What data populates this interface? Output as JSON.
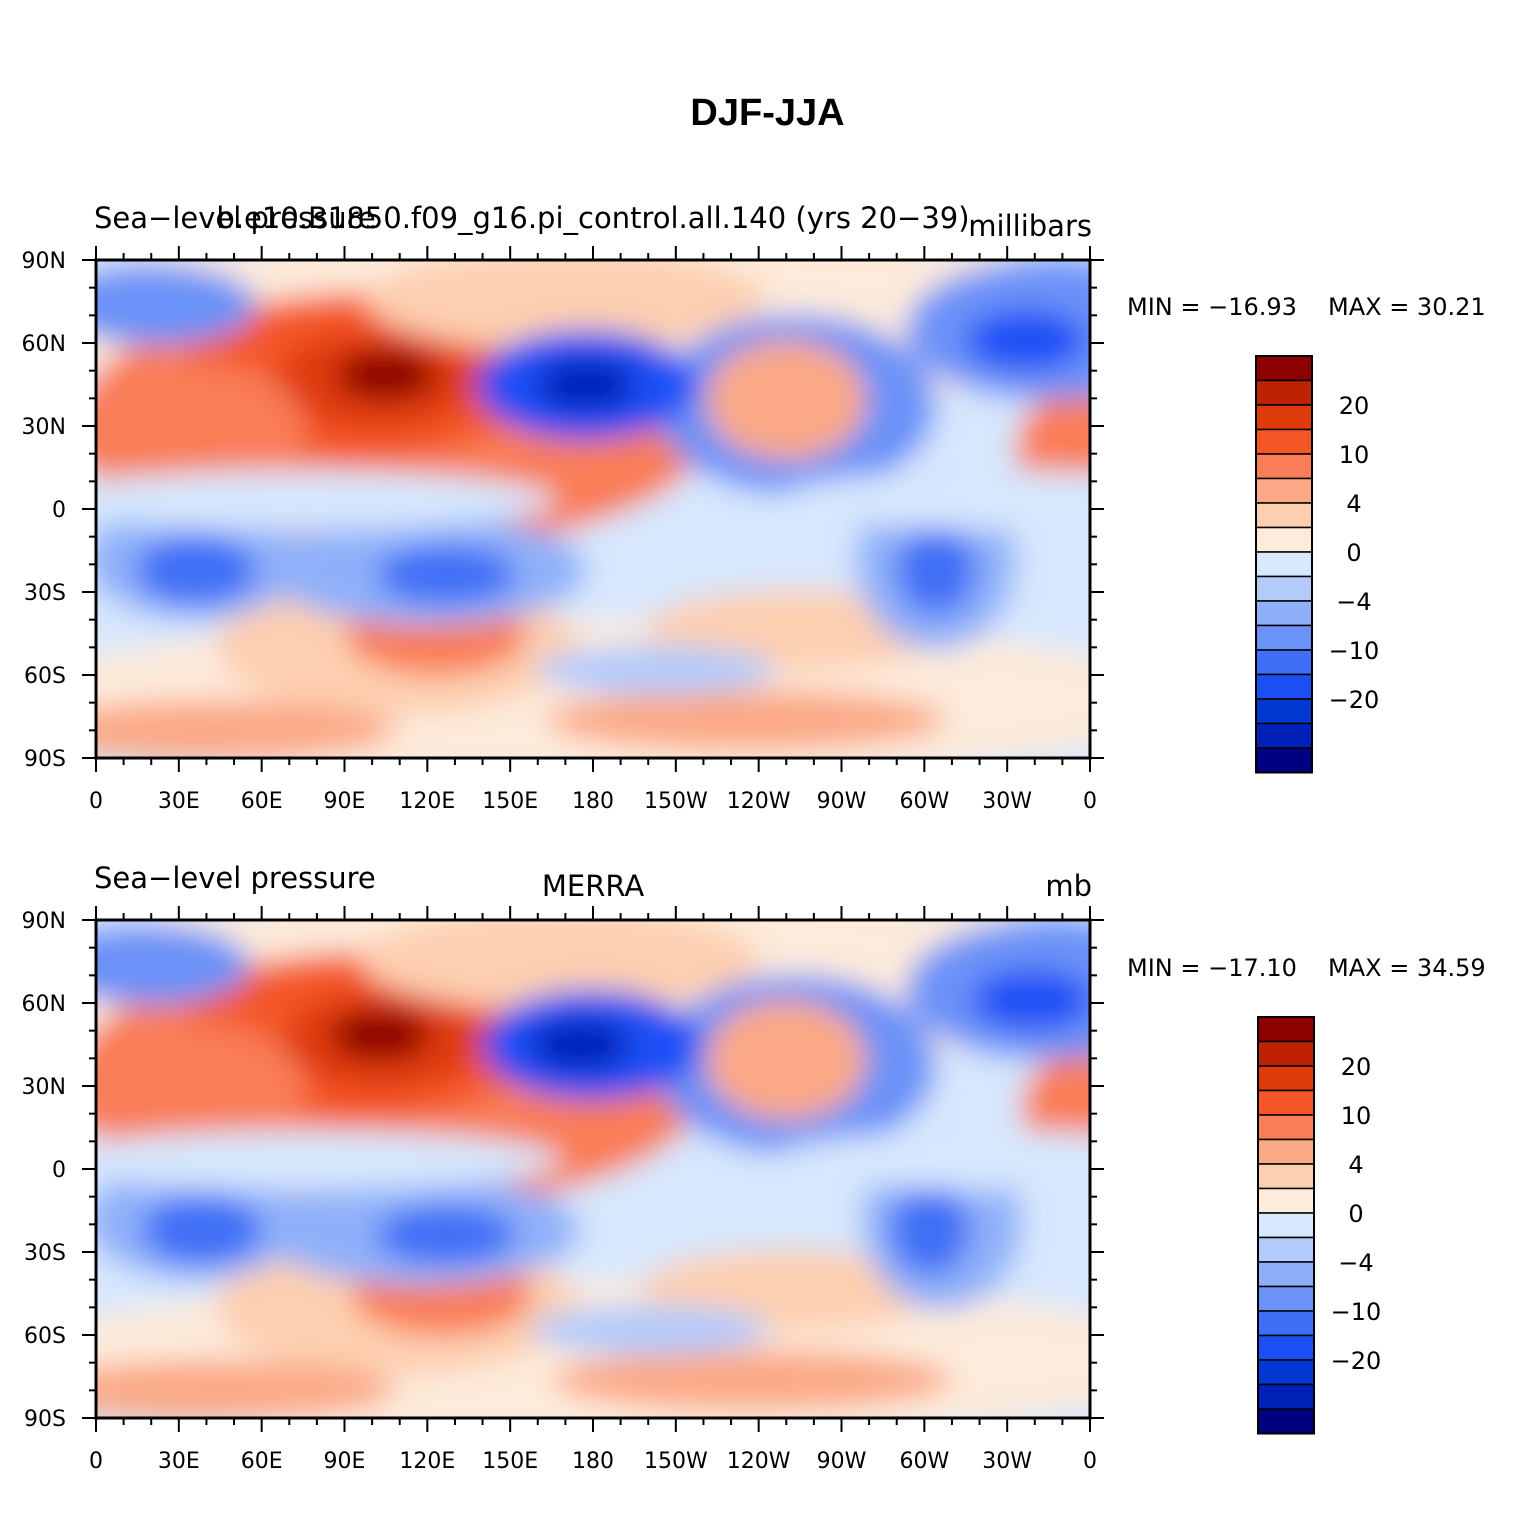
{
  "page": {
    "title": "DJF-JJA"
  },
  "colorbar": {
    "colors": [
      "#000080",
      "#0021b7",
      "#0039d1",
      "#1a4ff5",
      "#3f6ff6",
      "#6a92f8",
      "#8fb0f9",
      "#b3cbfb",
      "#d7e7fd",
      "#fdebdb",
      "#fdcfb0",
      "#fba986",
      "#f97d56",
      "#f45626",
      "#df3a09",
      "#bd2302",
      "#8c0000"
    ],
    "tick_labels": [
      "20",
      "10",
      "4",
      "0",
      "−4",
      "−10",
      "−20"
    ]
  },
  "chart_data": [
    {
      "type": "heatmap",
      "title_left": "Sea−level pressure",
      "title_center": "b.e10.B1850.f09_g16.pi_control.all.140 (yrs 20−39)",
      "units": "millibars",
      "min_label": "MIN = −16.93",
      "max_label": "MAX =   30.21",
      "min": -16.93,
      "max": 30.21,
      "x_tick_labels": [
        "0",
        "30E",
        "60E",
        "90E",
        "120E",
        "150E",
        "180",
        "150W",
        "120W",
        "90W",
        "60W",
        "30W",
        "0"
      ],
      "y_tick_labels": [
        "90N",
        "60N",
        "30N",
        "0",
        "30S",
        "60S",
        "90S"
      ],
      "xlim": [
        0,
        360
      ],
      "ylim": [
        -90,
        90
      ]
    },
    {
      "type": "heatmap",
      "title_left": "Sea−level pressure",
      "title_center": "MERRA",
      "units": "mb",
      "min_label": "MIN = −17.10",
      "max_label": "MAX =   34.59",
      "min": -17.1,
      "max": 34.59,
      "x_tick_labels": [
        "0",
        "30E",
        "60E",
        "90E",
        "120E",
        "150E",
        "180",
        "150W",
        "120W",
        "90W",
        "60W",
        "30W",
        "0"
      ],
      "y_tick_labels": [
        "90N",
        "60N",
        "30N",
        "0",
        "30S",
        "60S",
        "90S"
      ],
      "xlim": [
        0,
        360
      ],
      "ylim": [
        -90,
        90
      ]
    }
  ]
}
